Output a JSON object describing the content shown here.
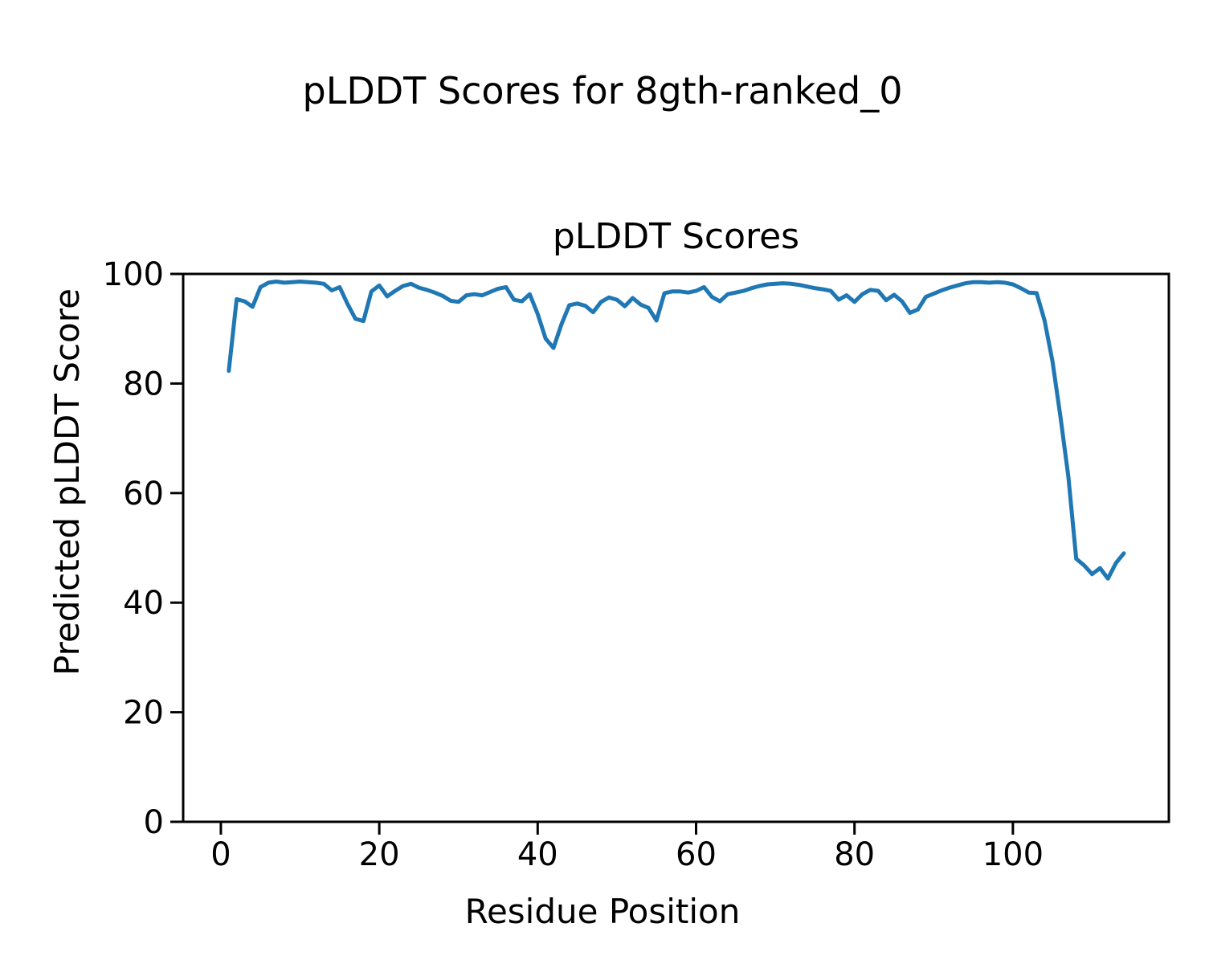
{
  "figure": {
    "suptitle": "pLDDT Scores for 8gth-ranked_0",
    "background_color": "#ffffff",
    "text_color": "#000000"
  },
  "chart_data": {
    "type": "line",
    "title": "pLDDT Scores",
    "xlabel": "Residue Position",
    "ylabel": "Predicted pLDDT Score",
    "xlim": [
      -4.76,
      119.69
    ],
    "ylim": [
      0,
      100
    ],
    "x_ticks": [
      0,
      20,
      40,
      60,
      80,
      100
    ],
    "y_ticks": [
      0,
      20,
      40,
      60,
      80,
      100
    ],
    "grid": false,
    "legend": "none",
    "line_color": "#1f77b4",
    "line_width": 5,
    "series": [
      {
        "name": "pLDDT",
        "x_start": 1,
        "x_step": 1,
        "values": [
          82.3,
          95.4,
          95.0,
          94.0,
          97.6,
          98.4,
          98.6,
          98.4,
          98.5,
          98.6,
          98.5,
          98.4,
          98.2,
          97.0,
          97.6,
          94.5,
          91.8,
          91.4,
          96.8,
          97.9,
          95.9,
          96.9,
          97.8,
          98.2,
          97.5,
          97.1,
          96.6,
          96.0,
          95.1,
          94.9,
          96.1,
          96.3,
          96.1,
          96.7,
          97.3,
          97.6,
          95.3,
          95.0,
          96.3,
          92.7,
          88.2,
          86.5,
          90.8,
          94.3,
          94.6,
          94.2,
          93.0,
          94.9,
          95.7,
          95.3,
          94.1,
          95.6,
          94.4,
          93.8,
          91.5,
          96.5,
          96.8,
          96.8,
          96.6,
          96.9,
          97.6,
          95.8,
          95.0,
          96.3,
          96.6,
          96.9,
          97.4,
          97.8,
          98.1,
          98.2,
          98.3,
          98.2,
          98.0,
          97.7,
          97.4,
          97.2,
          96.9,
          95.3,
          96.1,
          94.9,
          96.3,
          97.1,
          96.9,
          95.2,
          96.2,
          95.0,
          92.9,
          93.5,
          95.8,
          96.4,
          97.0,
          97.5,
          97.9,
          98.3,
          98.5,
          98.5,
          98.4,
          98.5,
          98.4,
          98.1,
          97.4,
          96.6,
          96.5,
          91.5,
          84.0,
          74.0,
          63.0,
          48.0,
          46.8,
          45.2,
          46.3,
          44.4,
          47.2,
          49.0
        ]
      }
    ]
  }
}
